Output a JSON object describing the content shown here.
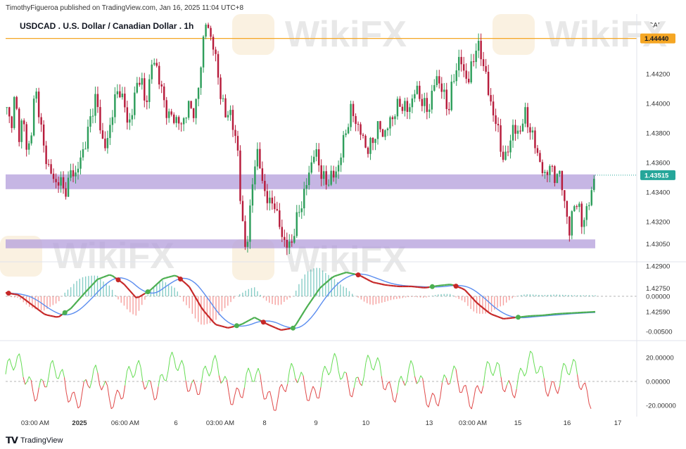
{
  "header": {
    "publisher": "TimothyFigueroa published on TradingView.com, Jan 16, 2025 11:04 UTC+8",
    "title": "USDCAD . U.S. Dollar / Canadian Dollar . 1h",
    "currency": "CAD"
  },
  "footer": {
    "brand": "TradingView",
    "logo": "tradingview-logo-icon"
  },
  "watermark": "WikiFX",
  "colors": {
    "up": "#26a69a",
    "down": "#ef5350",
    "candle_up": "#2e9e5b",
    "candle_down": "#b71c3c",
    "zone": "#b39ddb",
    "resistance": "#f5a623",
    "macd": "#5b8def",
    "signal_up": "#4caf50",
    "signal_down": "#c62828",
    "osc_up": "#66dd55",
    "osc_down": "#e04848",
    "current": "#26a69a"
  },
  "chart_data": [
    {
      "type": "candlestick",
      "title": "USDCAD . U.S. Dollar / Canadian Dollar . 1h",
      "y_axis_ticks": [
        1.4259,
        1.4275,
        1.429,
        1.4305,
        1.432,
        1.434,
        1.436,
        1.438,
        1.44,
        1.442
      ],
      "y_axis_tick_labels": [
        "1.42590",
        "1.42750",
        "1.42900",
        "1.43050",
        "1.43200",
        "1.43400",
        "1.43600",
        "1.43800",
        "1.44000",
        "1.44200"
      ],
      "x_axis_labels": [
        "03:00 AM",
        "2025",
        "06:00 AM",
        "6",
        "03:00 AM",
        "8",
        "9",
        "10",
        "13",
        "03:00 AM",
        "15",
        "16",
        "17"
      ],
      "horizontal_line": {
        "value": 1.4444,
        "label": "1.44440"
      },
      "current_price": {
        "value": 1.43515,
        "label": "1.43515"
      },
      "zones": [
        {
          "from": 1.4342,
          "to": 1.4352
        },
        {
          "from": 1.4302,
          "to": 1.4308
        }
      ],
      "close_path": [
        1.4395,
        1.4385,
        1.4405,
        1.4378,
        1.4392,
        1.4365,
        1.438,
        1.441,
        1.4395,
        1.437,
        1.436,
        1.4352,
        1.4345,
        1.435,
        1.434,
        1.4345,
        1.4355,
        1.4352,
        1.436,
        1.437,
        1.438,
        1.4395,
        1.4405,
        1.4385,
        1.437,
        1.4375,
        1.4395,
        1.4405,
        1.441,
        1.4398,
        1.4385,
        1.4395,
        1.4412,
        1.442,
        1.44,
        1.441,
        1.443,
        1.4425,
        1.441,
        1.44,
        1.439,
        1.4392,
        1.4388,
        1.4385,
        1.4392,
        1.4398,
        1.4395,
        1.44,
        1.443,
        1.4455,
        1.4448,
        1.444,
        1.442,
        1.4405,
        1.439,
        1.4398,
        1.438,
        1.437,
        1.432,
        1.43,
        1.4325,
        1.4355,
        1.437,
        1.4345,
        1.434,
        1.433,
        1.4335,
        1.432,
        1.431,
        1.4305,
        1.4302,
        1.4315,
        1.4325,
        1.4335,
        1.4345,
        1.4358,
        1.4368,
        1.436,
        1.435,
        1.4345,
        1.4352,
        1.435,
        1.436,
        1.4372,
        1.4385,
        1.4395,
        1.439,
        1.4382,
        1.4376,
        1.4368,
        1.4372,
        1.438,
        1.4385,
        1.4378,
        1.4384,
        1.439,
        1.4395,
        1.44,
        1.4398,
        1.4395,
        1.4402,
        1.441,
        1.4405,
        1.4398,
        1.4396,
        1.4405,
        1.442,
        1.4412,
        1.4405,
        1.4395,
        1.4412,
        1.4425,
        1.443,
        1.442,
        1.4415,
        1.4428,
        1.444,
        1.4433,
        1.4425,
        1.4405,
        1.4395,
        1.4385,
        1.437,
        1.436,
        1.4372,
        1.4384,
        1.4378,
        1.4385,
        1.4392,
        1.4385,
        1.4375,
        1.4368,
        1.4355,
        1.435,
        1.436,
        1.4348,
        1.4355,
        1.4345,
        1.433,
        1.431,
        1.4335,
        1.433,
        1.432,
        1.4325,
        1.4335,
        1.435
      ]
    },
    {
      "type": "line",
      "title": "MACD",
      "y_axis_ticks": [
        0,
        -0.005
      ],
      "y_axis_tick_labels": [
        "0.00000",
        "-0.00500"
      ],
      "series": [
        {
          "values": [
            0.0005,
            0.0002,
            -0.0012,
            -0.0026,
            -0.003,
            -0.0017,
            0.0004,
            0.0024,
            0.0031,
            0.0018,
            -0.0003,
            0.0008,
            0.0025,
            0.003,
            0.0014,
            -0.0018,
            -0.004,
            -0.0045,
            -0.004,
            -0.003,
            -0.004,
            -0.0048,
            -0.0045,
            -0.0015,
            0.0012,
            0.0028,
            0.0034,
            0.003,
            0.002,
            0.0016,
            0.0014,
            0.0014,
            0.0012,
            0.0015,
            0.0017,
            0.001,
            -0.001,
            -0.0025,
            -0.0032,
            -0.003,
            -0.0028,
            -0.0027,
            -0.0025,
            -0.0024,
            -0.0023,
            -0.0022
          ]
        }
      ]
    },
    {
      "type": "line",
      "title": "Oscillator",
      "y_axis_ticks": [
        20,
        0,
        -20
      ],
      "y_axis_tick_labels": [
        "20.00000",
        "0.00000",
        "-20.00000"
      ]
    }
  ]
}
